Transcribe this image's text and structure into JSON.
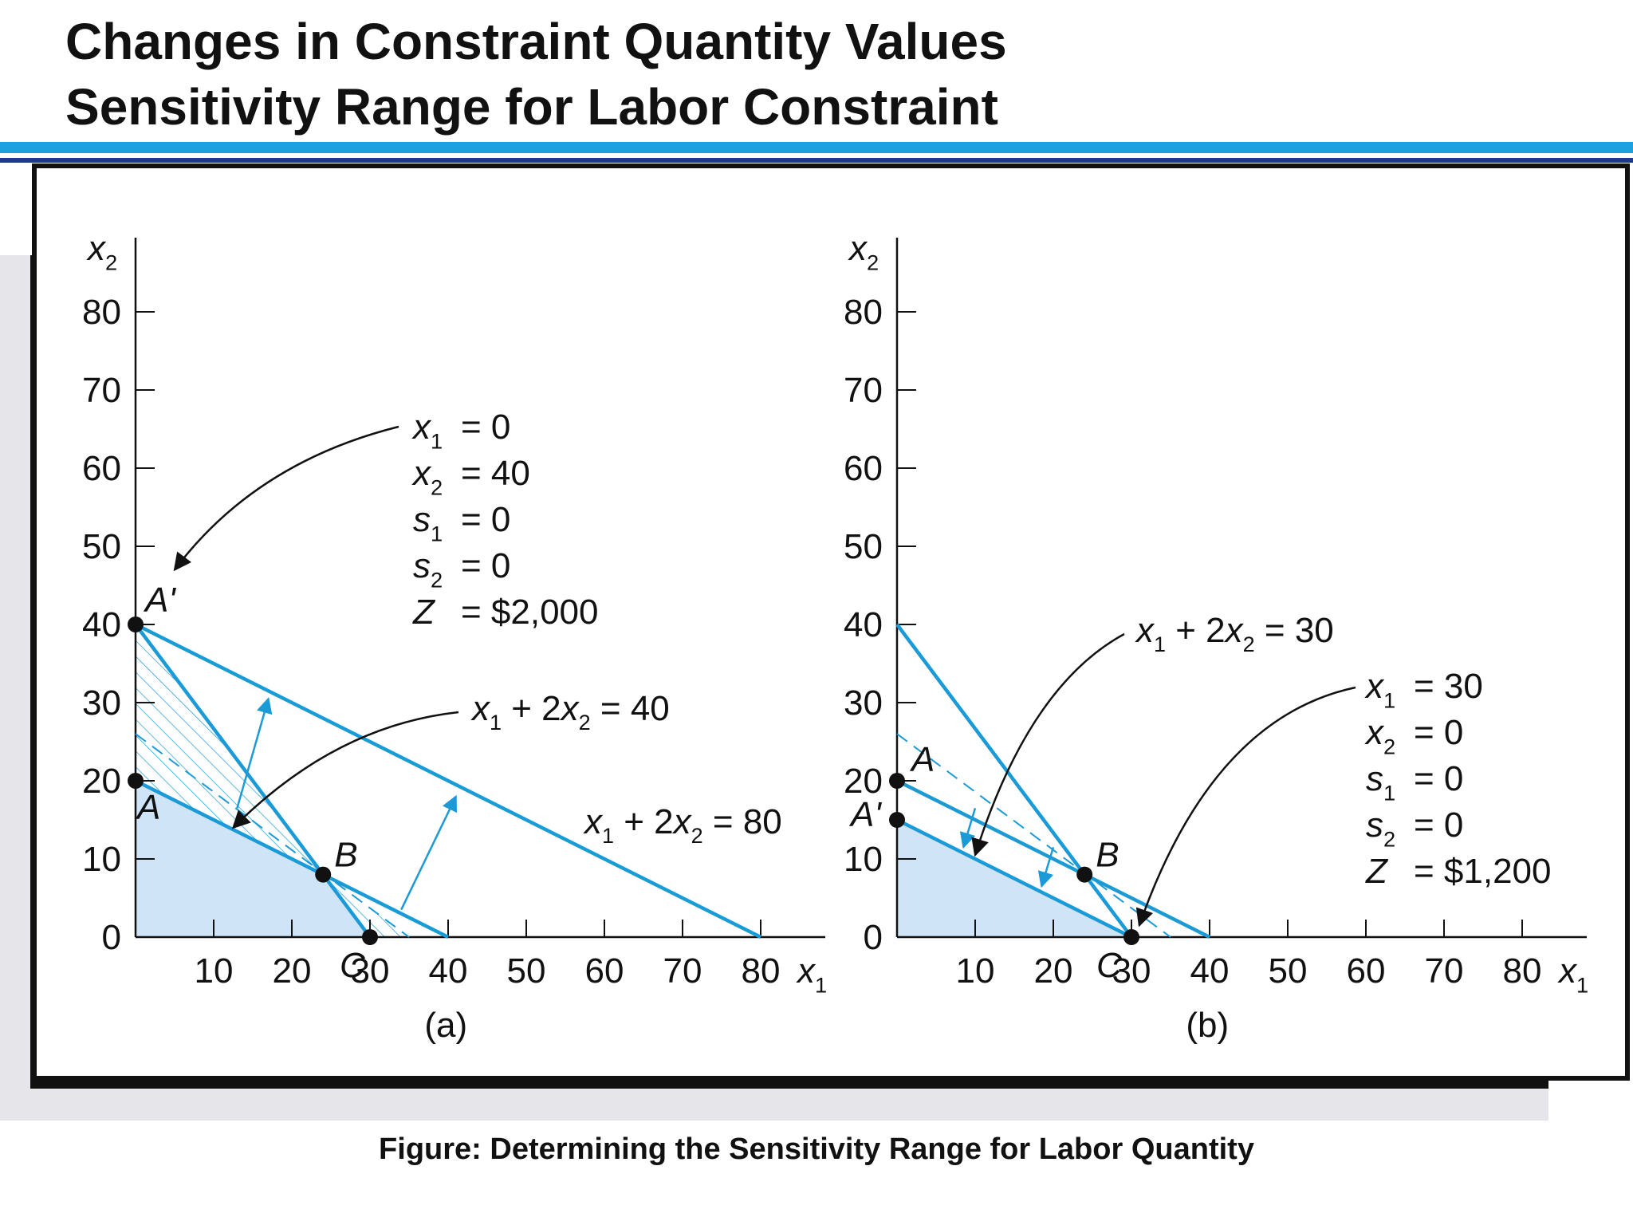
{
  "header": {
    "title_line1": "Changes in Constraint Quantity Values",
    "title_line2": "Sensitivity Range for Labor Constraint"
  },
  "caption": "Figure: Determining the Sensitivity Range for Labor Quantity",
  "colors": {
    "constraint_line": "#1a9ad6",
    "feasible_fill": "#cfe5f7",
    "point": "#111111",
    "rule_light": "#1ea0dc",
    "rule_dark": "#1b3a8c"
  },
  "chart_data": [
    {
      "type": "line",
      "panel_label": "(a)",
      "xlabel": "x1",
      "ylabel": "x2",
      "xlim": [
        0,
        88
      ],
      "ylim": [
        0,
        88
      ],
      "x_ticks": [
        10,
        20,
        30,
        40,
        50,
        60,
        70,
        80
      ],
      "y_ticks": [
        0,
        10,
        20,
        30,
        40,
        50,
        60,
        70,
        80
      ],
      "lines": [
        {
          "label": "x1 + 2x2 = 40",
          "points": [
            [
              0,
              20
            ],
            [
              40,
              0
            ]
          ]
        },
        {
          "label": "x1 + 2x2 = 80",
          "points": [
            [
              0,
              40
            ],
            [
              80,
              0
            ]
          ]
        },
        {
          "label": "",
          "points": [
            [
              0,
              40
            ],
            [
              30,
              0
            ]
          ]
        }
      ],
      "points": [
        {
          "label": "A'",
          "x": 0,
          "y": 40
        },
        {
          "label": "A",
          "x": 0,
          "y": 20
        },
        {
          "label": "B",
          "x": 24,
          "y": 8
        },
        {
          "label": "C",
          "x": 30,
          "y": 0
        }
      ],
      "annotation_box": {
        "rows": [
          {
            "var": "x",
            "sub": "1",
            "value": "= 0"
          },
          {
            "var": "x",
            "sub": "2",
            "value": "= 40"
          },
          {
            "var": "s",
            "sub": "1",
            "value": "= 0"
          },
          {
            "var": "s",
            "sub": "2",
            "value": "= 0"
          },
          {
            "var": "Z",
            "sub": "",
            "value": "= $2,000"
          }
        ],
        "points_to": "A'"
      },
      "line_labels": [
        {
          "x1": "x",
          "x1_sub": "1",
          "rest": "+ 2x",
          "sub": "2",
          "tail": "= 40"
        },
        {
          "x1": "x",
          "x1_sub": "1",
          "rest": "+ 2x",
          "sub": "2",
          "tail": "= 80"
        }
      ]
    },
    {
      "type": "line",
      "panel_label": "(b)",
      "xlabel": "x1",
      "ylabel": "x2",
      "xlim": [
        0,
        88
      ],
      "ylim": [
        0,
        88
      ],
      "x_ticks": [
        10,
        20,
        30,
        40,
        50,
        60,
        70,
        80
      ],
      "y_ticks": [
        0,
        10,
        20,
        30,
        40,
        50,
        60,
        70,
        80
      ],
      "lines": [
        {
          "label": "x1 + 2x2 = 30",
          "points": [
            [
              0,
              15
            ],
            [
              30,
              0
            ]
          ]
        },
        {
          "label": "",
          "points": [
            [
              0,
              20
            ],
            [
              40,
              0
            ]
          ]
        },
        {
          "label": "",
          "points": [
            [
              0,
              40
            ],
            [
              30,
              0
            ]
          ]
        }
      ],
      "points": [
        {
          "label": "A",
          "x": 0,
          "y": 20
        },
        {
          "label": "A'",
          "x": 0,
          "y": 15
        },
        {
          "label": "B",
          "x": 24,
          "y": 8
        },
        {
          "label": "C",
          "x": 30,
          "y": 0
        }
      ],
      "annotation_box": {
        "rows": [
          {
            "var": "x",
            "sub": "1",
            "value": "= 30"
          },
          {
            "var": "x",
            "sub": "2",
            "value": "= 0"
          },
          {
            "var": "s",
            "sub": "1",
            "value": "= 0"
          },
          {
            "var": "s",
            "sub": "2",
            "value": "= 0"
          },
          {
            "var": "Z",
            "sub": "",
            "value": "= $1,200"
          }
        ],
        "points_to": "C"
      },
      "line_labels": [
        {
          "x1": "x",
          "x1_sub": "1",
          "rest": "+ 2x",
          "sub": "2",
          "tail": "= 30"
        }
      ]
    }
  ]
}
